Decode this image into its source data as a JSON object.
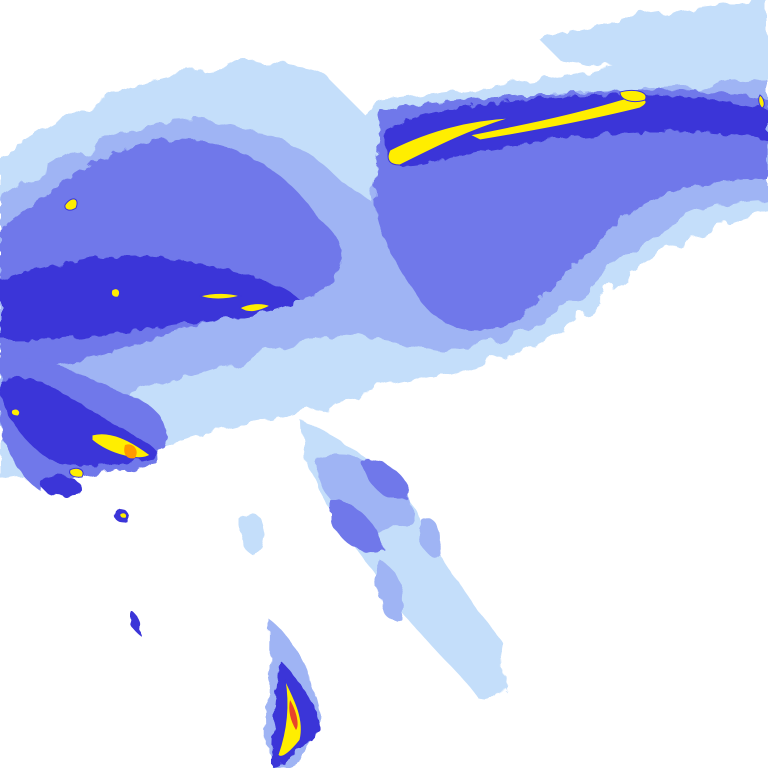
{
  "map": {
    "type": "precipitation-radar-tile",
    "colors": {
      "background": "#ffffff",
      "very_light": "#c4defa",
      "light": "#9fb4f4",
      "medium": "#6f78ea",
      "heavy": "#3a34d8",
      "intense": "#ffee00",
      "extreme": "#ff9a00",
      "peak": "#e8442a"
    }
  }
}
